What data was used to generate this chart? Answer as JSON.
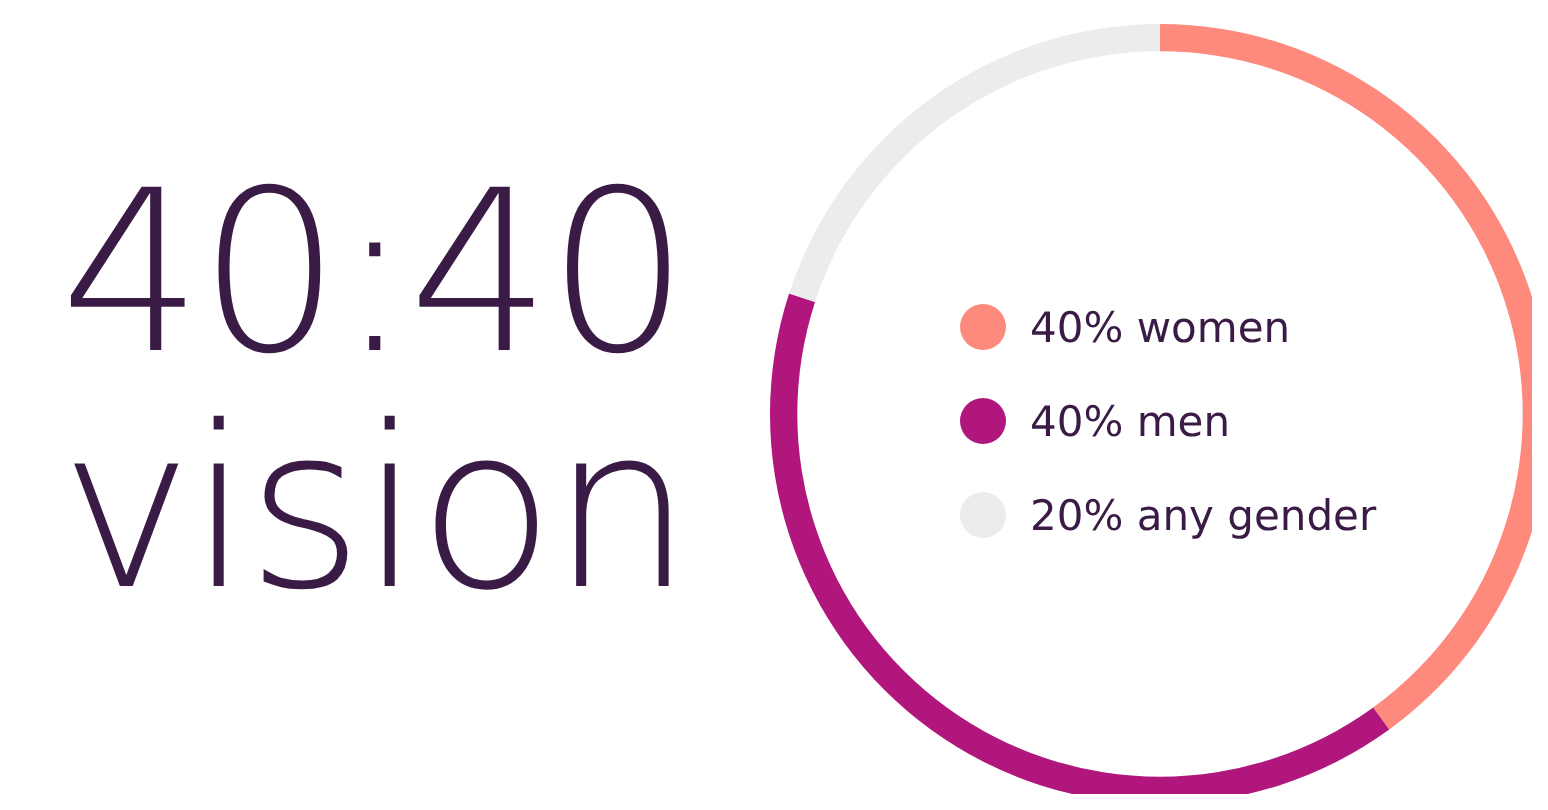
{
  "chart_data": {
    "type": "donut",
    "title": "40:40 vision",
    "categories": [
      "40% women",
      "40% men",
      "20% any gender"
    ],
    "values": [
      40,
      40,
      20
    ],
    "colors": [
      "#fe8a7e",
      "#b1167d",
      "#ececec"
    ],
    "legend": "center"
  }
}
